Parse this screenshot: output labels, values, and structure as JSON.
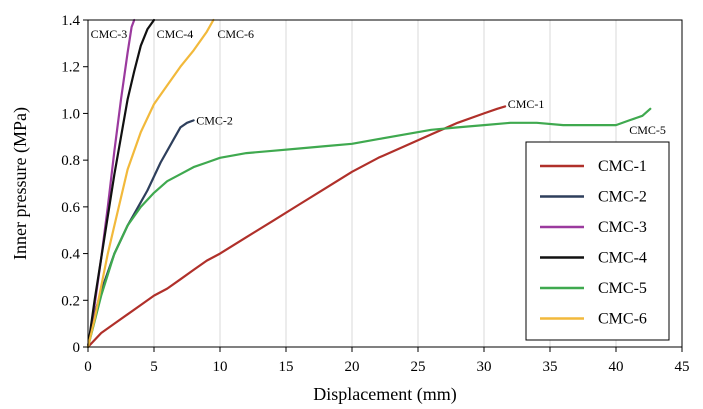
{
  "chart_data": {
    "type": "line",
    "xlabel": "Displacement (mm)",
    "ylabel": "Inner pressure (MPa)",
    "xlim": [
      0,
      45
    ],
    "ylim": [
      0,
      1.4
    ],
    "xticks": [
      0,
      5,
      10,
      15,
      20,
      25,
      30,
      35,
      40,
      45
    ],
    "yticks": [
      0,
      0.2,
      0.4,
      0.6,
      0.8,
      1.0,
      1.2,
      1.4
    ],
    "ytick_labels": [
      "0",
      "0.2",
      "0.4",
      "0.6",
      "0.8",
      "1.0",
      "1.2",
      "1.4"
    ],
    "grid": "x-only",
    "legend_position": "bottom-right",
    "series": [
      {
        "name": "CMC-1",
        "color": "#b0302a",
        "x": [
          0,
          1,
          2,
          3,
          4,
          5,
          6,
          7,
          8,
          9,
          10,
          12,
          14,
          16,
          18,
          20,
          22,
          24,
          26,
          28,
          30,
          31,
          31.6
        ],
        "y": [
          0,
          0.06,
          0.1,
          0.14,
          0.18,
          0.22,
          0.25,
          0.29,
          0.33,
          0.37,
          0.4,
          0.47,
          0.54,
          0.61,
          0.68,
          0.75,
          0.81,
          0.86,
          0.91,
          0.96,
          1.0,
          1.02,
          1.03
        ]
      },
      {
        "name": "CMC-2",
        "color": "#2e3f5c",
        "x": [
          0,
          0.5,
          1,
          1.5,
          2,
          2.5,
          3,
          3.5,
          4,
          4.5,
          5,
          5.5,
          6,
          6.5,
          7,
          7.5,
          8
        ],
        "y": [
          0,
          0.14,
          0.24,
          0.32,
          0.4,
          0.46,
          0.52,
          0.57,
          0.62,
          0.67,
          0.73,
          0.79,
          0.84,
          0.89,
          0.94,
          0.96,
          0.97
        ]
      },
      {
        "name": "CMC-3",
        "color": "#9b3a9e",
        "x": [
          0,
          0.5,
          1,
          1.5,
          2,
          2.5,
          3,
          3.3,
          3.5
        ],
        "y": [
          0,
          0.18,
          0.38,
          0.6,
          0.84,
          1.06,
          1.26,
          1.37,
          1.4
        ]
      },
      {
        "name": "CMC-4",
        "color": "#111111",
        "x": [
          0,
          0.5,
          1,
          1.5,
          2,
          2.5,
          3,
          3.5,
          4,
          4.5,
          5
        ],
        "y": [
          0,
          0.2,
          0.38,
          0.56,
          0.74,
          0.9,
          1.06,
          1.18,
          1.29,
          1.36,
          1.4
        ]
      },
      {
        "name": "CMC-5",
        "color": "#3fa94f",
        "x": [
          0,
          1,
          2,
          3,
          4,
          5,
          6,
          7,
          8,
          9,
          10,
          12,
          14,
          16,
          18,
          20,
          22,
          24,
          26,
          28,
          30,
          32,
          34,
          36,
          38,
          40,
          41,
          42,
          42.6
        ],
        "y": [
          0,
          0.22,
          0.4,
          0.52,
          0.6,
          0.66,
          0.71,
          0.74,
          0.77,
          0.79,
          0.81,
          0.83,
          0.84,
          0.85,
          0.86,
          0.87,
          0.89,
          0.91,
          0.93,
          0.94,
          0.95,
          0.96,
          0.96,
          0.95,
          0.95,
          0.95,
          0.97,
          0.99,
          1.02
        ]
      },
      {
        "name": "CMC-6",
        "color": "#f2b93b",
        "x": [
          0,
          0.5,
          1,
          1.5,
          2,
          2.5,
          3,
          4,
          5,
          6,
          7,
          8,
          9,
          9.5
        ],
        "y": [
          0,
          0.12,
          0.26,
          0.4,
          0.52,
          0.64,
          0.76,
          0.92,
          1.04,
          1.12,
          1.2,
          1.27,
          1.35,
          1.4
        ]
      }
    ],
    "annotations": [
      {
        "text": "CMC-3",
        "x": 0.2,
        "y": 1.34
      },
      {
        "text": "CMC-4",
        "x": 5.2,
        "y": 1.34
      },
      {
        "text": "CMC-6",
        "x": 9.8,
        "y": 1.34
      },
      {
        "text": "CMC-2",
        "x": 8.2,
        "y": 0.97
      },
      {
        "text": "CMC-1",
        "x": 31.8,
        "y": 1.04
      },
      {
        "text": "CMC-5",
        "x": 41.0,
        "y": 0.93
      }
    ]
  }
}
